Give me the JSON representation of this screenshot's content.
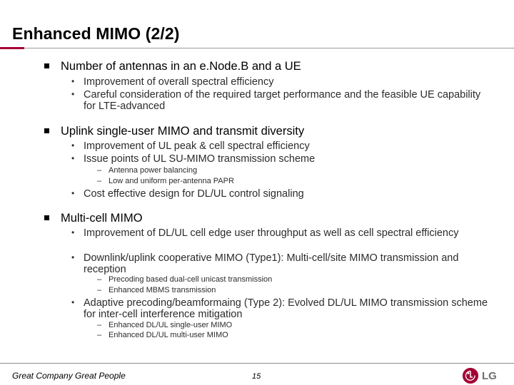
{
  "slide": {
    "title": "Enhanced MIMO (2/2)",
    "sections": [
      {
        "heading": "Number of antennas in an e.Node.B and a UE",
        "items": [
          {
            "text": "Improvement of overall spectral efficiency"
          },
          {
            "text": "Careful consideration of the required target performance and the feasible UE capability for LTE-advanced"
          }
        ]
      },
      {
        "heading": "Uplink single-user MIMO and transmit diversity",
        "items": [
          {
            "text": "Improvement of UL peak & cell spectral efficiency"
          },
          {
            "text": "Issue points of UL SU-MIMO transmission scheme",
            "subitems": [
              "Antenna power balancing",
              "Low and uniform per-antenna PAPR"
            ]
          },
          {
            "text": "Cost effective design for DL/UL control signaling"
          }
        ]
      },
      {
        "heading": "Multi-cell MIMO",
        "items": [
          {
            "text": "Improvement of DL/UL cell edge user throughput as well as cell spectral efficiency"
          },
          {
            "text": "Downlink/uplink cooperative MIMO (Type1): Multi-cell/site MIMO transmission and reception",
            "subitems": [
              "Precoding based dual-cell unicast transmission",
              "Enhanced MBMS transmission"
            ]
          },
          {
            "text": "Adaptive precoding/beamformaing (Type 2): Evolved  DL/UL MIMO transmission scheme for inter-cell interference mitigation",
            "subitems": [
              "Enhanced DL/UL single-user MIMO",
              "Enhanced DL/UL multi-user MIMO"
            ]
          }
        ]
      }
    ]
  },
  "footer": {
    "slogan": "Great Company Great People",
    "page_number": "15",
    "logo_text": "LG"
  },
  "glyphs": {
    "bullet": "•",
    "dash": "–"
  },
  "colors": {
    "accent": "#a50034",
    "logo_gray": "#6d6e71"
  }
}
